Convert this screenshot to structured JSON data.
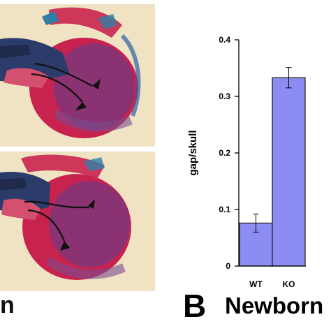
{
  "panel_a": {
    "caption_fragment": "n",
    "images": [
      {
        "name": "wt-skull-photo"
      },
      {
        "name": "ko-skull-photo"
      }
    ]
  },
  "panel_b": {
    "letter": "B",
    "title": "Newborn"
  },
  "colors": {
    "bar_fill": "#8c8cf2",
    "bar_stroke": "#1a1a1a",
    "axis": "#000000",
    "photo_background": "#f0e3c4",
    "stain_red": "#c8234f",
    "stain_blue": "#2e5fa3"
  },
  "chart_data": {
    "type": "bar",
    "categories": [
      "WT",
      "KO"
    ],
    "values": [
      0.076,
      0.333
    ],
    "errors": [
      0.016,
      0.018
    ],
    "ylabel": "gap/skull",
    "xlabel": "",
    "ylim": [
      0,
      0.4
    ],
    "yticks": [
      "0",
      "0.1",
      "0.2",
      "0.3",
      "0.4"
    ],
    "grid": false,
    "legend": "none"
  }
}
